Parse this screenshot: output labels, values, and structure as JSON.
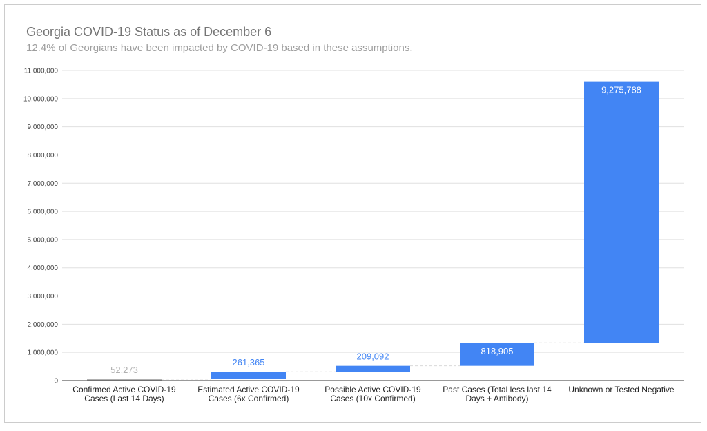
{
  "chart_data": {
    "type": "bar",
    "subtype": "waterfall",
    "title": "Georgia COVID-19 Status as of December 6",
    "subtitle": "12.4% of Georgians have been impacted by COVID-19 based in these assumptions.",
    "xlabel": "",
    "ylabel": "",
    "ylim": [
      0,
      11000000
    ],
    "yticks": [
      0,
      1000000,
      2000000,
      3000000,
      4000000,
      5000000,
      6000000,
      7000000,
      8000000,
      9000000,
      10000000,
      11000000
    ],
    "ytick_labels": [
      "0",
      "1,000,000",
      "2,000,000",
      "3,000,000",
      "4,000,000",
      "5,000,000",
      "6,000,000",
      "7,000,000",
      "8,000,000",
      "9,000,000",
      "10,000,000",
      "11,000,000"
    ],
    "grid": true,
    "legend": "none",
    "categories": [
      [
        "Confirmed Active COVID-19",
        "Cases (Last 14 Days)"
      ],
      [
        "Estimated Active COVID-19",
        "Cases (6x Confirmed)"
      ],
      [
        "Possible Active COVID-19",
        "Cases (10x Confirmed)"
      ],
      [
        "Past Cases (Total less last 14",
        "Days + Antibody)"
      ],
      [
        "Unknown or Tested Negative"
      ]
    ],
    "values": [
      52273,
      261365,
      209092,
      818905,
      9275788
    ],
    "value_labels": [
      "52,273",
      "261,365",
      "209,092",
      "818,905",
      "9,275,788"
    ],
    "bar_kinds": [
      "start",
      "increase",
      "increase",
      "increase",
      "increase"
    ],
    "colors": {
      "start_bar": "#b0b0b0",
      "start_label": "#b0b0b0",
      "increase_bar": "#4285f4",
      "outside_label": "#4285f4",
      "inside_label": "#ffffff",
      "gridline": "#e0e0e0",
      "axis": "#333333",
      "connector": "#d9d9d9"
    }
  }
}
